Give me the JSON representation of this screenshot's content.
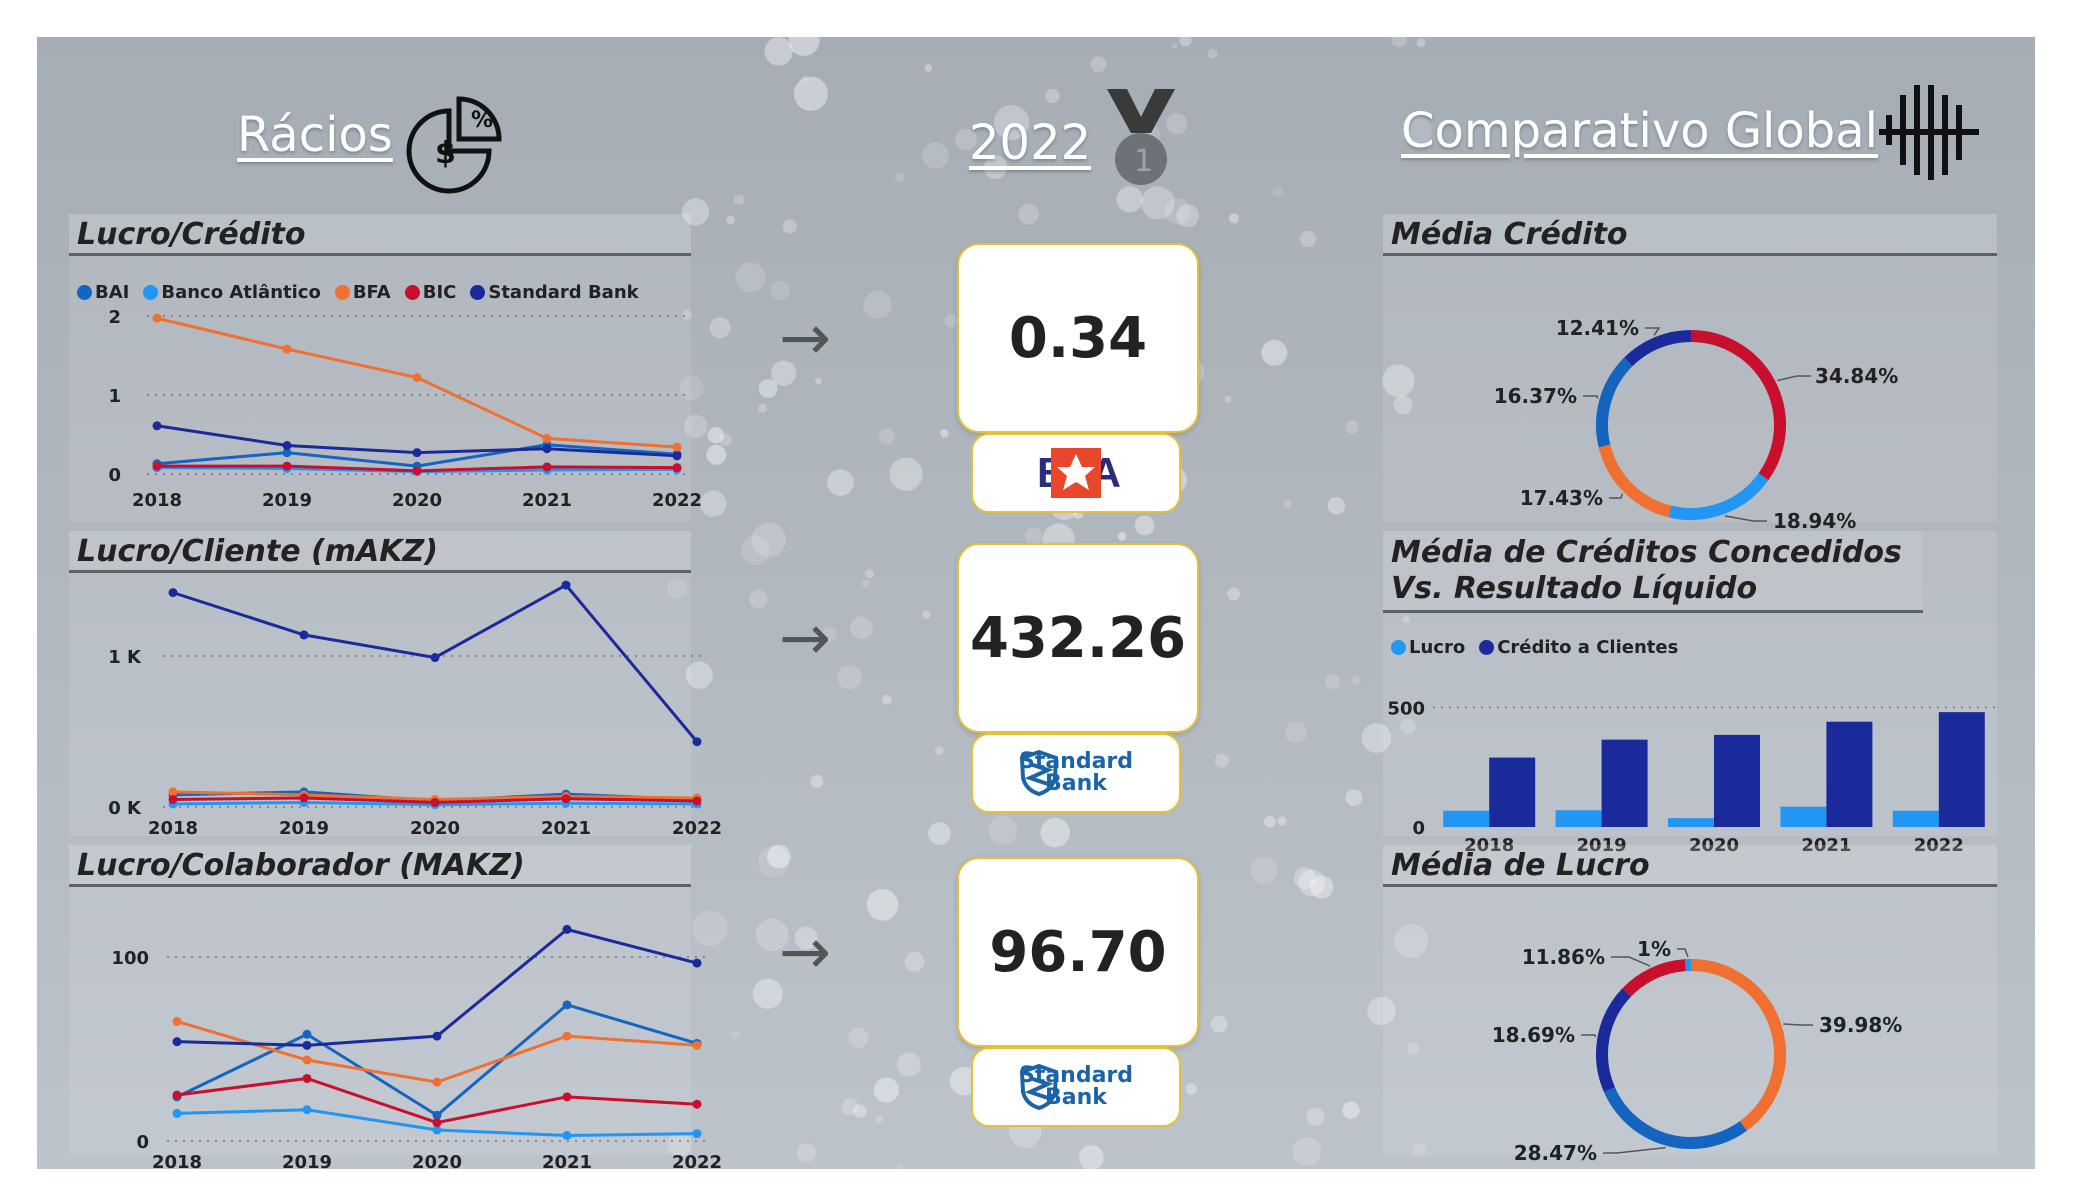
{
  "headers": {
    "racios": "Rácios",
    "year": "2022",
    "comparativo": "Comparativo Global"
  },
  "colors": {
    "BAI": "#1565c0",
    "Banco Atlântico": "#2196f3",
    "BFA": "#ef7030",
    "BIC": "#c8102e",
    "Standard Bank": "#1a2a9a"
  },
  "legend_banks": [
    "BAI",
    "Banco Atlântico",
    "BFA",
    "BIC",
    "Standard Bank"
  ],
  "panels": {
    "lucro_credito": "Lucro/Crédito",
    "lucro_cliente": "Lucro/Cliente (mAKZ)",
    "lucro_colaborador": "Lucro/Colaborador (MAKZ)",
    "media_credito": "Média Crédito",
    "media_creditos_vs_resultado": "Média de Créditos Concedidos Vs. Resultado Líquido",
    "media_lucro": "Média de Lucro"
  },
  "kpis": [
    {
      "value": "0.34",
      "bank": "BFA"
    },
    {
      "value": "432.26",
      "bank": "Standard Bank"
    },
    {
      "value": "96.70",
      "bank": "Standard Bank"
    }
  ],
  "logo_text": {
    "bfa": "BFA",
    "sb_line1": "Standard",
    "sb_line2": "Bank"
  },
  "chart_data": [
    {
      "id": "lucro_credito",
      "type": "line",
      "title": "Lucro/Crédito",
      "x": [
        "2018",
        "2019",
        "2020",
        "2021",
        "2022"
      ],
      "yticks": [
        "0",
        "1",
        "2"
      ],
      "ytick_values": [
        0,
        1,
        2
      ],
      "ylim": [
        0,
        2.15
      ],
      "series": [
        {
          "name": "BAI",
          "values": [
            0.13,
            0.27,
            0.1,
            0.37,
            0.25
          ]
        },
        {
          "name": "Banco Atlântico",
          "values": [
            0.08,
            0.07,
            0.03,
            0.05,
            0.06
          ]
        },
        {
          "name": "BFA",
          "values": [
            1.97,
            1.58,
            1.22,
            0.45,
            0.34
          ]
        },
        {
          "name": "BIC",
          "values": [
            0.1,
            0.1,
            0.04,
            0.09,
            0.08
          ]
        },
        {
          "name": "Standard Bank",
          "values": [
            0.61,
            0.36,
            0.27,
            0.32,
            0.23
          ]
        }
      ]
    },
    {
      "id": "lucro_cliente",
      "type": "line",
      "title": "Lucro/Cliente (mAKZ)",
      "x": [
        "2018",
        "2019",
        "2020",
        "2021",
        "2022"
      ],
      "yticks": [
        "0 K",
        "1 K"
      ],
      "ytick_values": [
        0,
        1000
      ],
      "ylim": [
        0,
        1550
      ],
      "series": [
        {
          "name": "BAI",
          "values": [
            80,
            100,
            40,
            85,
            50
          ]
        },
        {
          "name": "Banco Atlântico",
          "values": [
            20,
            30,
            15,
            25,
            20
          ]
        },
        {
          "name": "BFA",
          "values": [
            100,
            80,
            50,
            70,
            60
          ]
        },
        {
          "name": "BIC",
          "values": [
            50,
            60,
            30,
            55,
            40
          ]
        },
        {
          "name": "Standard Bank",
          "values": [
            1420,
            1140,
            990,
            1470,
            432.26
          ]
        }
      ]
    },
    {
      "id": "lucro_colaborador",
      "type": "line",
      "title": "Lucro/Colaborador (MAKZ)",
      "x": [
        "2018",
        "2019",
        "2020",
        "2021",
        "2022"
      ],
      "yticks": [
        "0",
        "100"
      ],
      "ytick_values": [
        0,
        100
      ],
      "ylim": [
        0,
        125
      ],
      "series": [
        {
          "name": "BAI",
          "values": [
            24,
            58,
            14,
            74,
            53
          ]
        },
        {
          "name": "Banco Atlântico",
          "values": [
            15,
            17,
            6,
            3,
            4
          ]
        },
        {
          "name": "BFA",
          "values": [
            65,
            44,
            32,
            57,
            52
          ]
        },
        {
          "name": "BIC",
          "values": [
            25,
            34,
            10,
            24,
            20
          ]
        },
        {
          "name": "Standard Bank",
          "values": [
            54,
            52,
            57,
            115,
            96.7
          ]
        }
      ]
    },
    {
      "id": "media_credito",
      "type": "pie",
      "title": "Média Crédito",
      "slices": [
        {
          "name": "BIC",
          "value": 34.84,
          "label": "34.84%"
        },
        {
          "name": "Banco Atlântico",
          "value": 18.94,
          "label": "18.94%"
        },
        {
          "name": "BFA",
          "value": 17.43,
          "label": "17.43%"
        },
        {
          "name": "BAI",
          "value": 16.37,
          "label": "16.37%"
        },
        {
          "name": "Standard Bank",
          "value": 12.41,
          "label": "12.41%"
        }
      ]
    },
    {
      "id": "media_creditos_vs_resultado",
      "type": "bar",
      "title": "Média de Créditos Concedidos Vs. Resultado Líquido",
      "categories": [
        "2018",
        "2019",
        "2020",
        "2021",
        "2022"
      ],
      "yticks": [
        "0",
        "500"
      ],
      "ytick_values": [
        0,
        500
      ],
      "ylim": [
        0,
        560
      ],
      "series": [
        {
          "name": "Lucro",
          "color": "#2196f3",
          "values": [
            68,
            70,
            37,
            85,
            68
          ]
        },
        {
          "name": "Crédito a Clientes",
          "color": "#1a2a9a",
          "values": [
            290,
            365,
            385,
            440,
            480
          ]
        }
      ]
    },
    {
      "id": "media_lucro",
      "type": "pie",
      "title": "Média de Lucro",
      "slices": [
        {
          "name": "BFA",
          "value": 39.98,
          "label": "39.98%"
        },
        {
          "name": "BAI",
          "value": 28.47,
          "label": "28.47%"
        },
        {
          "name": "Standard Bank",
          "value": 18.69,
          "label": "18.69%"
        },
        {
          "name": "BIC",
          "value": 11.86,
          "label": "11.86%"
        },
        {
          "name": "Banco Atlântico",
          "value": 1.0,
          "label": "1%"
        }
      ]
    }
  ]
}
